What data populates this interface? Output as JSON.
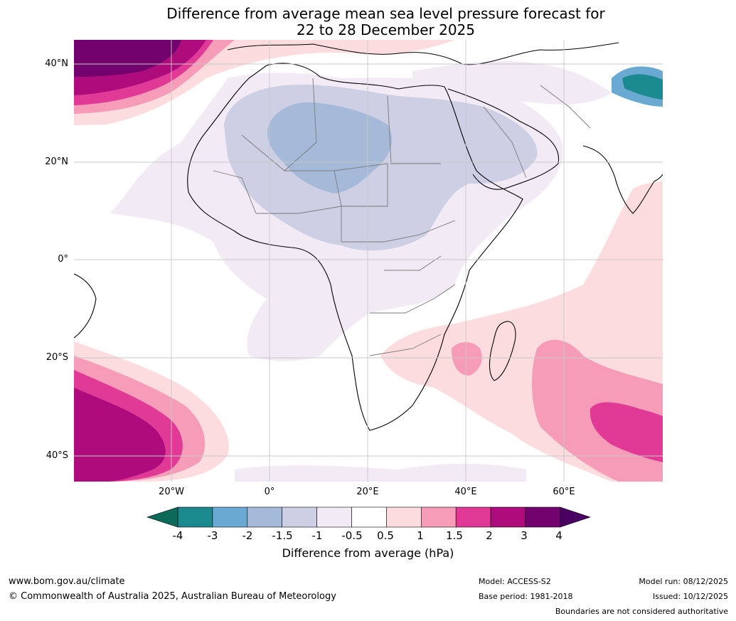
{
  "title": {
    "line1": "Difference from average mean sea level pressure forecast for",
    "line2": "22 to 28 December 2025"
  },
  "axes": {
    "lat_labels": [
      "40°N",
      "20°N",
      "0°",
      "20°S",
      "40°S"
    ],
    "lon_labels": [
      "20°W",
      "0°",
      "20°E",
      "40°E",
      "60°E"
    ]
  },
  "legend": {
    "title": "Difference from average (hPa)",
    "ticks": [
      "-4",
      "-3",
      "-2",
      "-1.5",
      "-1",
      "-0.5",
      "0.5",
      "1",
      "1.5",
      "2",
      "3",
      "4"
    ],
    "colors": [
      "#1b8a8f",
      "#6aaad2",
      "#a5bad8",
      "#cdcfe4",
      "#f2eaf4",
      "#ffffff",
      "#fddcdf",
      "#f79cb8",
      "#e03a96",
      "#ae0c7c",
      "#73026e"
    ],
    "under_color": "#0d6a58",
    "over_color": "#4a0060"
  },
  "footer": {
    "website": "www.bom.gov.au/climate",
    "copyright": "© Commonwealth of Australia 2025, Australian Bureau of Meteorology",
    "model": "Model: ACCESS-S2",
    "base_period": "Base period: 1981-2018",
    "model_run": "Model run: 08/12/2025",
    "issued": "Issued: 10/12/2025",
    "disclaimer": "Boundaries are not considered authoritative"
  }
}
